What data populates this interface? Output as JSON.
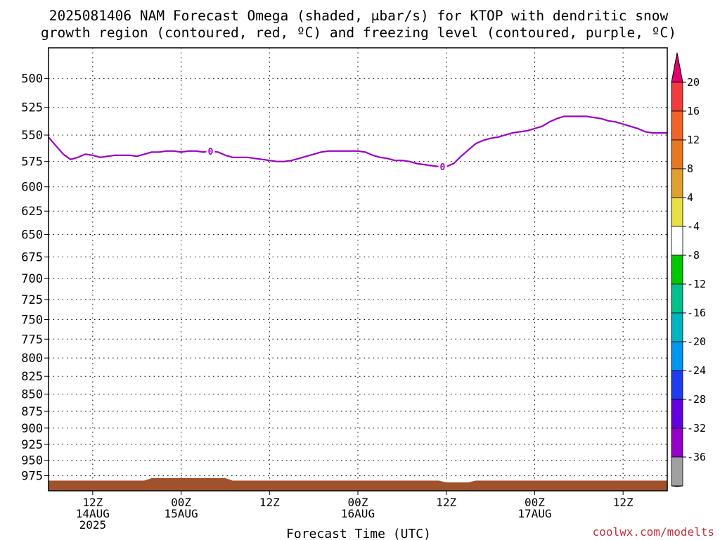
{
  "title_lines": [
    "2025081406 NAM Forecast Omega (shaded, μbar/s) for KTOP with dendritic snow",
    "growth region (contoured, red, ºC) and freezing level (contoured, purple, ºC)"
  ],
  "credit": "coolwx.com/modelts",
  "chart_data": {
    "type": "line",
    "xlabel": "Forecast Time (UTC)",
    "x_units": "forecast hour from 2025-08-14 06Z",
    "x_range": [
      0,
      84
    ],
    "ylim": [
      1000,
      475
    ],
    "y_scale": "log pressure (hPa), inverted",
    "grid": true,
    "yticks": [
      500,
      525,
      550,
      575,
      600,
      625,
      650,
      675,
      700,
      725,
      750,
      775,
      800,
      825,
      850,
      875,
      900,
      925,
      950,
      975
    ],
    "xticks": [
      {
        "x": 6,
        "lines": [
          "12Z",
          "14AUG",
          "2025"
        ]
      },
      {
        "x": 18,
        "lines": [
          "00Z",
          "15AUG"
        ]
      },
      {
        "x": 30,
        "lines": [
          "12Z"
        ]
      },
      {
        "x": 42,
        "lines": [
          "00Z",
          "16AUG"
        ]
      },
      {
        "x": 54,
        "lines": [
          "12Z"
        ]
      },
      {
        "x": 66,
        "lines": [
          "00Z",
          "17AUG"
        ]
      },
      {
        "x": 78,
        "lines": [
          "12Z"
        ]
      }
    ],
    "series": [
      {
        "color": "#9b00c8",
        "contour_labels": [
          {
            "text": "0",
            "x": 22
          },
          {
            "text": "0",
            "x": 53.5
          }
        ],
        "x": [
          0,
          1,
          2,
          3,
          4,
          5,
          6,
          7,
          8,
          9,
          10,
          11,
          12,
          13,
          14,
          15,
          16,
          17,
          18,
          19,
          20,
          21,
          22,
          23,
          24,
          25,
          26,
          27,
          28,
          29,
          30,
          31,
          32,
          33,
          34,
          35,
          36,
          37,
          38,
          39,
          40,
          41,
          42,
          43,
          44,
          45,
          46,
          47,
          48,
          49,
          50,
          51,
          52,
          53,
          54,
          55,
          56,
          57,
          58,
          59,
          60,
          61,
          62,
          63,
          64,
          65,
          66,
          67,
          68,
          69,
          70,
          71,
          72,
          73,
          74,
          75,
          76,
          77,
          78,
          79,
          80,
          81,
          82,
          83,
          84
        ],
        "values": [
          552,
          560,
          568,
          573,
          571,
          568,
          569,
          571,
          570,
          569,
          569,
          569,
          570,
          568,
          566,
          566,
          565,
          565,
          566,
          565,
          565,
          566,
          565,
          566,
          569,
          571,
          571,
          571,
          572,
          573,
          574,
          575,
          575,
          574,
          572,
          570,
          568,
          566,
          565,
          565,
          565,
          565,
          565,
          566,
          569,
          571,
          572,
          574,
          574,
          575,
          577,
          578,
          579,
          580,
          580,
          577,
          570,
          564,
          558,
          555,
          553,
          552,
          550,
          548,
          547,
          546,
          544,
          542,
          538,
          535,
          533,
          533,
          533,
          533,
          534,
          535,
          537,
          538,
          540,
          542,
          544,
          547,
          548,
          548,
          548
        ]
      }
    ],
    "surface": {
      "color": "#a0522d",
      "x": [
        0,
        13,
        14,
        24,
        25,
        53,
        54,
        57,
        58,
        84
      ],
      "values": [
        983,
        983,
        979,
        979,
        983,
        983,
        986,
        986,
        983,
        983
      ]
    },
    "colorbar": {
      "labels": [
        "20",
        "16",
        "12",
        "8",
        "4",
        "-4",
        "-8",
        "-12",
        "-16",
        "-20",
        "-24",
        "-28",
        "-32",
        "-36"
      ],
      "colors": [
        "#f03c3c",
        "#f06428",
        "#e87820",
        "#e0a030",
        "#e8e040",
        "#ffffff",
        "#00c800",
        "#00c08c",
        "#00b4c0",
        "#0096f0",
        "#1e3cf0",
        "#6400e0",
        "#9600c8",
        "#a0a0a0"
      ],
      "top_arrow_color": "#e0006e",
      "bottom_arrow_color": "#000000"
    }
  }
}
